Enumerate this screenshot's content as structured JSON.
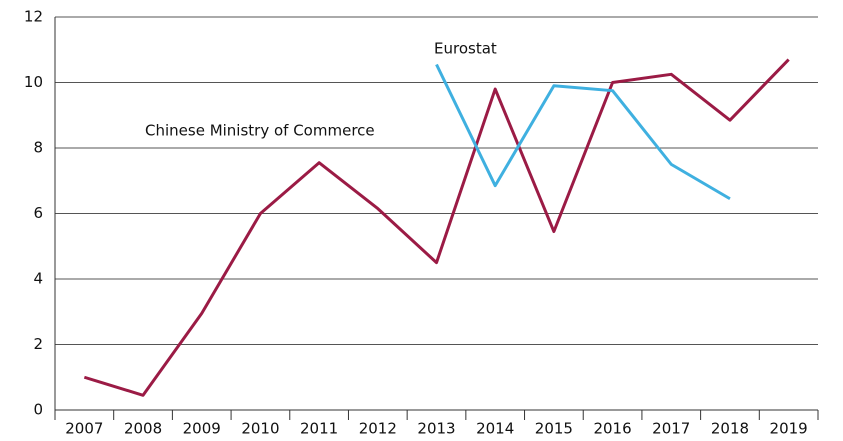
{
  "chart_data": {
    "type": "line",
    "categories": [
      "2007",
      "2008",
      "2009",
      "2010",
      "2011",
      "2012",
      "2013",
      "2014",
      "2015",
      "2016",
      "2017",
      "2018",
      "2019"
    ],
    "series": [
      {
        "name": "Chinese Ministry of Commerce",
        "color": "#9b1b45",
        "values": [
          1.0,
          0.45,
          2.95,
          6.0,
          7.55,
          6.15,
          4.5,
          9.8,
          5.45,
          10.0,
          10.25,
          8.85,
          10.7
        ]
      },
      {
        "name": "Eurostat",
        "color": "#3fb0e0",
        "values": [
          null,
          null,
          null,
          null,
          null,
          null,
          10.55,
          6.85,
          9.9,
          9.75,
          7.5,
          6.45,
          null
        ]
      }
    ],
    "ylim": [
      0,
      12
    ],
    "yticks": [
      0,
      2,
      4,
      6,
      8,
      10,
      12
    ],
    "grid": true
  }
}
